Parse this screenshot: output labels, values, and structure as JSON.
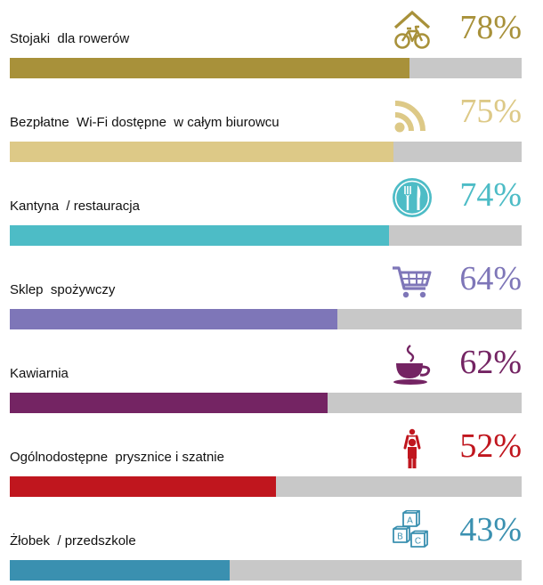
{
  "chart_data": {
    "type": "bar",
    "orientation": "horizontal",
    "categories": [
      "Stojaki  dla rowerów",
      "Bezpłatne  Wi-Fi dostępne  w całym biurowcu",
      "Kantyna  / restauracja",
      "Sklep  spożywczy",
      "Kawiarnia",
      "Ogólnodostępne  prysznice i szatnie",
      "Żłobek  / przedszkole"
    ],
    "values": [
      78,
      75,
      74,
      64,
      62,
      52,
      43
    ],
    "value_labels": [
      "78%",
      "75%",
      "74%",
      "64%",
      "62%",
      "52%",
      "43%"
    ],
    "ylim": [
      0,
      100
    ],
    "colors": [
      "#a8913a",
      "#ddc987",
      "#4dbcc6",
      "#7e76b8",
      "#742463",
      "#c0161e",
      "#3a90b0"
    ],
    "icons": [
      "bicycle-house-icon",
      "wifi-icon",
      "fork-knife-icon",
      "shopping-cart-icon",
      "coffee-cup-icon",
      "shower-icon",
      "abc-blocks-icon"
    ],
    "track_color": "#c8c8c8",
    "grid": false,
    "legend": "none"
  }
}
